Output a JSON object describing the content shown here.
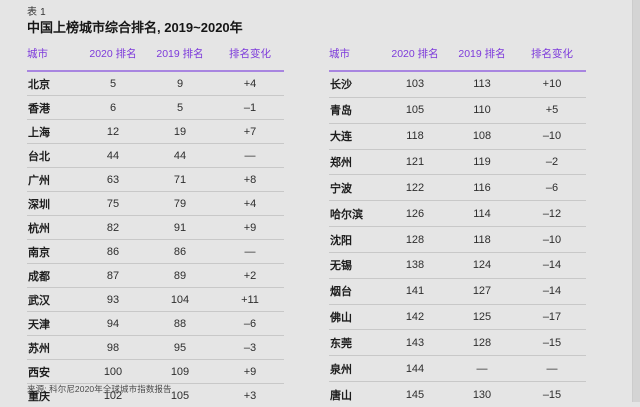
{
  "page": {
    "table_label": "表 1",
    "title": "中国上榜城市综合排名, 2019~2020年",
    "source": "来源: 科尔尼2020年全球城市指数报告"
  },
  "columns": [
    "城市",
    "2020 排名",
    "2019 排名",
    "排名变化"
  ],
  "tables": [
    {
      "name": "left",
      "rows": [
        [
          "北京",
          "5",
          "9",
          "+4"
        ],
        [
          "香港",
          "6",
          "5",
          "–1"
        ],
        [
          "上海",
          "12",
          "19",
          "+7"
        ],
        [
          "台北",
          "44",
          "44",
          "—"
        ],
        [
          "广州",
          "63",
          "71",
          "+8"
        ],
        [
          "深圳",
          "75",
          "79",
          "+4"
        ],
        [
          "杭州",
          "82",
          "91",
          "+9"
        ],
        [
          "南京",
          "86",
          "86",
          "—"
        ],
        [
          "成都",
          "87",
          "89",
          "+2"
        ],
        [
          "武汉",
          "93",
          "104",
          "+11"
        ],
        [
          "天津",
          "94",
          "88",
          "–6"
        ],
        [
          "苏州",
          "98",
          "95",
          "–3"
        ],
        [
          "西安",
          "100",
          "109",
          "+9"
        ],
        [
          "重庆",
          "102",
          "105",
          "+3"
        ]
      ]
    },
    {
      "name": "right",
      "rows": [
        [
          "长沙",
          "103",
          "113",
          "+10"
        ],
        [
          "青岛",
          "105",
          "110",
          "+5"
        ],
        [
          "大连",
          "118",
          "108",
          "–10"
        ],
        [
          "郑州",
          "121",
          "119",
          "–2"
        ],
        [
          "宁波",
          "122",
          "116",
          "–6"
        ],
        [
          "哈尔滨",
          "126",
          "114",
          "–12"
        ],
        [
          "沈阳",
          "128",
          "118",
          "–10"
        ],
        [
          "无锡",
          "138",
          "124",
          "–14"
        ],
        [
          "烟台",
          "141",
          "127",
          "–14"
        ],
        [
          "佛山",
          "142",
          "125",
          "–17"
        ],
        [
          "东莞",
          "143",
          "128",
          "–15"
        ],
        [
          "泉州",
          "144",
          "—",
          "—"
        ],
        [
          "唐山",
          "145",
          "130",
          "–15"
        ]
      ]
    }
  ],
  "colors": {
    "header_purple": "#7d3adb",
    "rule_purple": "#a885e0",
    "row_line": "#c8c8c8",
    "page_background": "#e5e5e5",
    "edge_strip": "#d4d4d4"
  }
}
